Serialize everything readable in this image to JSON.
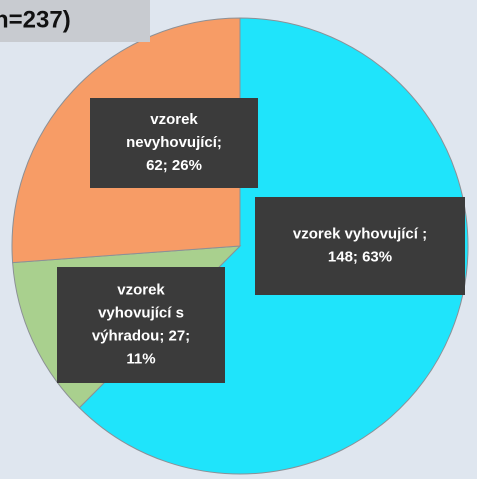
{
  "chart_data": {
    "type": "pie",
    "title": "n=237)",
    "categories": [
      "vzorek vyhovující",
      "vzorek vyhovující s výhradou",
      "vzorek nevyhovující"
    ],
    "values": [
      148,
      27,
      62
    ],
    "colors": [
      "#1fe4fb",
      "#a9d08e",
      "#f79c66"
    ],
    "value_labels": [
      [
        "vzorek vyhovující ;",
        "148; 63%"
      ],
      [
        "vzorek",
        "vyhovující s",
        "výhradou; 27;",
        "11%"
      ],
      [
        "vzorek",
        "nevyhovující;",
        "62; 26%"
      ]
    ]
  }
}
